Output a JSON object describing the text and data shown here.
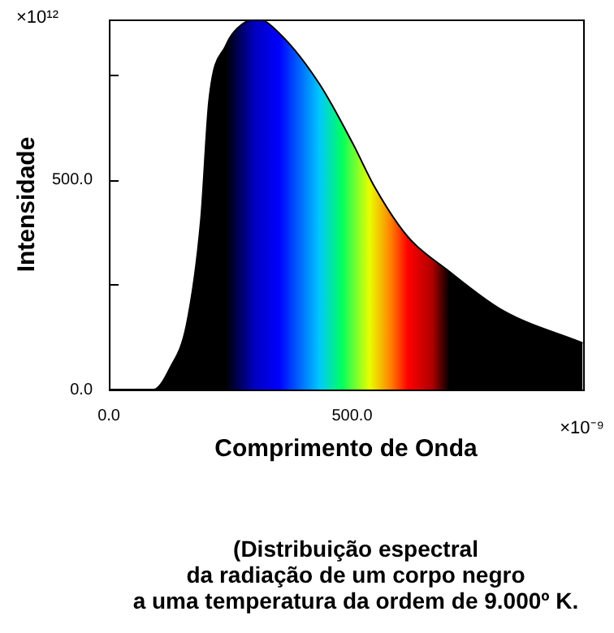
{
  "chart_data": {
    "type": "area",
    "xlabel": "Comprimento de Onda",
    "ylabel": "Intensidade",
    "x": [
      0,
      92,
      126,
      160,
      189,
      206,
      240,
      274,
      308,
      354,
      433,
      502,
      547,
      615,
      695,
      809,
      974
    ],
    "series": [
      {
        "color": "#000000",
        "values": [
          0,
          0,
          52,
          156,
          403,
          690,
          820,
          872,
          883,
          846,
          729,
          586,
          482,
          364,
          286,
          189,
          111
        ]
      }
    ],
    "xlim": [
      0,
      975
    ],
    "xticks": [
      {
        "value": 0,
        "label": "0.0"
      },
      {
        "value": 500,
        "label": "500.0"
      }
    ],
    "ylim": [
      0,
      883
    ],
    "yticks": [
      {
        "value": 0,
        "label": "0.0"
      },
      {
        "value": 250,
        "label": null
      },
      {
        "value": 500,
        "label": "500.0"
      },
      {
        "value": 750,
        "label": null
      }
    ],
    "annotations": [
      "×10¹²",
      "×10⁻⁹",
      "(Distribuição espectral\nda radiação de um corpo negro\na uma temperatura da ordem de 9.000º K."
    ]
  }
}
